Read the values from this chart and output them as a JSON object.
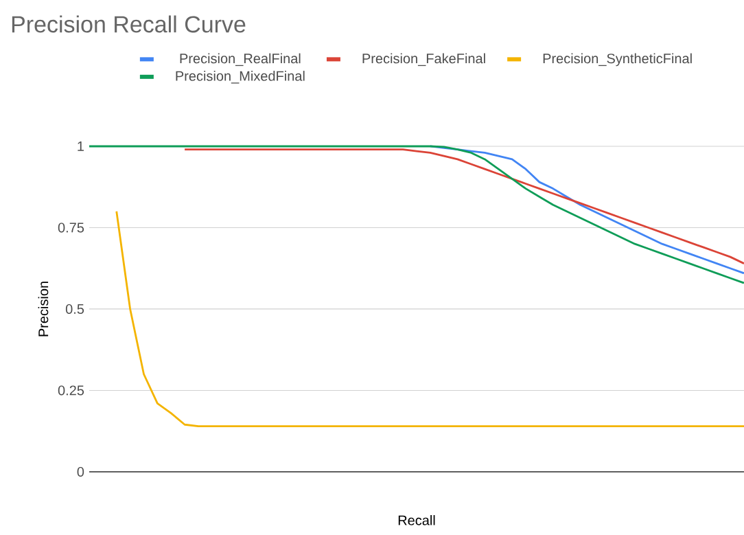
{
  "chart_data": {
    "type": "line",
    "title": "Precision Recall Curve",
    "xlabel": "Recall",
    "ylabel": "Precision",
    "categories": [
      null,
      null,
      null,
      null,
      null,
      null,
      null,
      null,
      null,
      null,
      null,
      null,
      null,
      null,
      null,
      null,
      null,
      null,
      null,
      null,
      null,
      null,
      null,
      null,
      null,
      null,
      null,
      null,
      null,
      null,
      null,
      null,
      null,
      null,
      null,
      null,
      null,
      null,
      null,
      null,
      null,
      null,
      null,
      null,
      null,
      null,
      null,
      null,
      null
    ],
    "series": [
      {
        "name": "Precision_RealFinal",
        "color": "#4285f4",
        "values": [
          null,
          null,
          null,
          null,
          null,
          null,
          null,
          null,
          null,
          null,
          null,
          null,
          null,
          null,
          null,
          null,
          null,
          null,
          null,
          null,
          null,
          null,
          null,
          null,
          null,
          1,
          0.995,
          0.99,
          0.985,
          0.98,
          0.97,
          0.96,
          0.93,
          0.89,
          0.87,
          0.845,
          0.82,
          0.8,
          0.78,
          0.76,
          0.74,
          0.72,
          0.7,
          0.685,
          0.67,
          0.655,
          0.64,
          0.625,
          0.61
        ]
      },
      {
        "name": "Precision_FakeFinal",
        "color": "#db4437",
        "values": [
          null,
          null,
          null,
          null,
          null,
          null,
          null,
          0.99,
          0.99,
          0.99,
          0.99,
          0.99,
          0.99,
          0.99,
          0.99,
          0.99,
          0.99,
          0.99,
          0.99,
          0.99,
          0.99,
          0.99,
          0.99,
          0.99,
          0.985,
          0.98,
          0.97,
          0.96,
          0.945,
          0.93,
          0.915,
          0.9,
          0.885,
          0.87,
          0.855,
          0.84,
          0.825,
          0.81,
          0.795,
          0.78,
          0.765,
          0.75,
          0.735,
          0.72,
          0.705,
          0.69,
          0.675,
          0.66,
          0.64
        ]
      },
      {
        "name": "Precision_SyntheticFinal",
        "color": "#f4b400",
        "values": [
          null,
          null,
          0.8,
          0.5,
          0.3,
          0.21,
          0.18,
          0.145,
          0.14,
          0.14,
          0.14,
          0.14,
          0.14,
          0.14,
          0.14,
          0.14,
          0.14,
          0.14,
          0.14,
          0.14,
          0.14,
          0.14,
          0.14,
          0.14,
          0.14,
          0.14,
          0.14,
          0.14,
          0.14,
          0.14,
          0.14,
          0.14,
          0.14,
          0.14,
          0.14,
          0.14,
          0.14,
          0.14,
          0.14,
          0.14,
          0.14,
          0.14,
          0.14,
          0.14,
          0.14,
          0.14,
          0.14,
          0.14,
          0.14
        ]
      },
      {
        "name": "Precision_MixedFinal",
        "color": "#0f9d58",
        "values": [
          1,
          1,
          1,
          1,
          1,
          1,
          1,
          1,
          1,
          1,
          1,
          1,
          1,
          1,
          1,
          1,
          1,
          1,
          1,
          1,
          1,
          1,
          1,
          1,
          1,
          1,
          0.998,
          0.99,
          0.98,
          0.96,
          0.93,
          0.9,
          0.87,
          0.845,
          0.82,
          0.8,
          0.78,
          0.76,
          0.74,
          0.72,
          0.7,
          0.685,
          0.67,
          0.655,
          0.64,
          0.625,
          0.61,
          0.595,
          0.58
        ]
      }
    ],
    "ylim": [
      0,
      1
    ],
    "yticks": [
      0,
      0.25,
      0.5,
      0.75,
      1
    ],
    "grid": "y",
    "legend": "top",
    "tick_labels": "y"
  }
}
